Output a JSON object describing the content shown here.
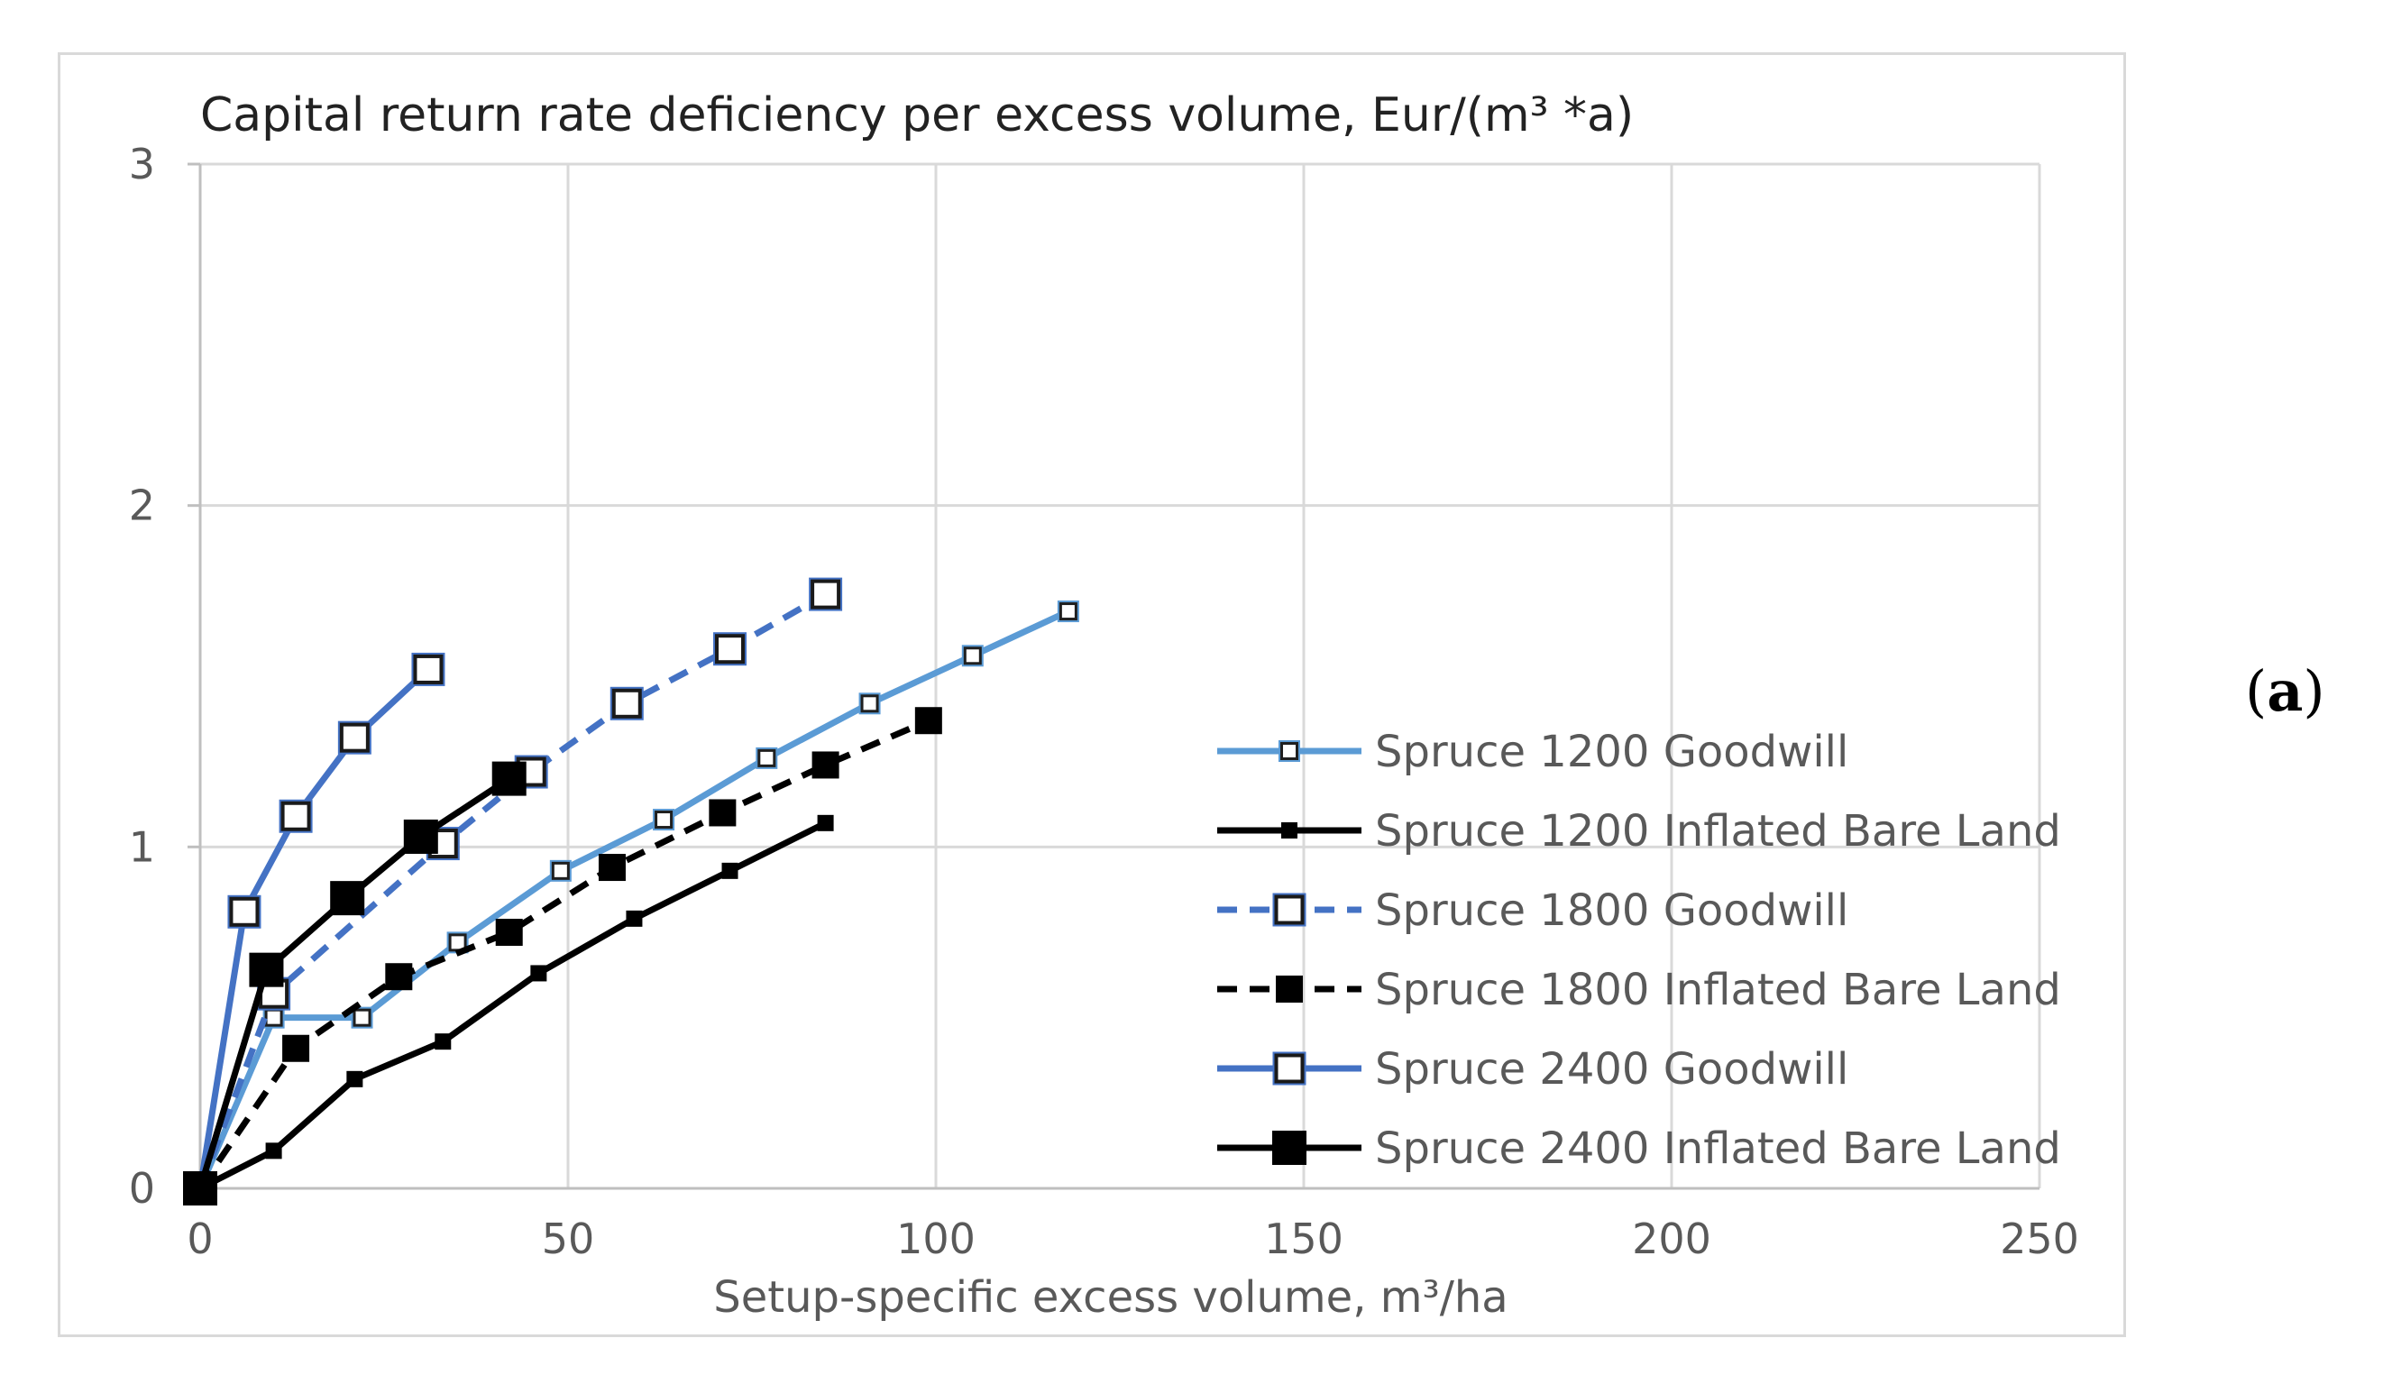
{
  "panel_label": {
    "open": "(",
    "letter": "a",
    "close": ")"
  },
  "chart_data": {
    "type": "line",
    "title": "Capital return rate deficiency per excess volume,  Eur/(m³ *a)",
    "xlabel": "Setup-specific excess volume, m³/ha",
    "ylabel": "",
    "xlim": [
      0,
      250
    ],
    "ylim": [
      0,
      3
    ],
    "x_ticks": [
      0,
      50,
      100,
      150,
      200,
      250
    ],
    "y_ticks": [
      0,
      1,
      2,
      3
    ],
    "grid": true,
    "legend_position": "right",
    "series": [
      {
        "name": "Spruce 1200 Goodwill",
        "color": "#5b9bd5",
        "line_style": "solid",
        "marker": "hollow-square",
        "marker_size": "small",
        "x": [
          0,
          10,
          22,
          35,
          49,
          63,
          77,
          91,
          105,
          118
        ],
        "y": [
          0,
          0.5,
          0.5,
          0.72,
          0.93,
          1.08,
          1.26,
          1.42,
          1.56,
          1.69
        ]
      },
      {
        "name": "Spruce 1200 Inflated Bare Land",
        "color": "#000000",
        "line_style": "solid",
        "marker": "filled-square",
        "marker_size": "small",
        "x": [
          0,
          10,
          21,
          33,
          46,
          59,
          72,
          85
        ],
        "y": [
          0,
          0.11,
          0.32,
          0.43,
          0.63,
          0.79,
          0.93,
          1.07
        ]
      },
      {
        "name": "Spruce 1800 Goodwill",
        "color": "#4472c4",
        "line_style": "dashed",
        "marker": "hollow-square",
        "marker_size": "large",
        "x": [
          0,
          10,
          33,
          45,
          58,
          72,
          85
        ],
        "y": [
          0,
          0.57,
          1.01,
          1.22,
          1.42,
          1.58,
          1.74
        ]
      },
      {
        "name": "Spruce 1800 Inflated Bare Land",
        "color": "#000000",
        "line_style": "dashed",
        "marker": "filled-square",
        "marker_size": "large",
        "x": [
          0,
          13,
          27,
          42,
          56,
          71,
          85,
          99
        ],
        "y": [
          0,
          0.41,
          0.62,
          0.75,
          0.94,
          1.1,
          1.24,
          1.37
        ]
      },
      {
        "name": "Spruce 2400 Goodwill",
        "color": "#4472c4",
        "line_style": "solid",
        "marker": "hollow-square",
        "marker_size": "large",
        "x": [
          0,
          6,
          13,
          21,
          31
        ],
        "y": [
          0,
          0.81,
          1.09,
          1.32,
          1.52
        ]
      },
      {
        "name": "Spruce 2400 Inflated Bare Land",
        "color": "#000000",
        "line_style": "solid",
        "marker": "filled-square",
        "marker_size": "xlarge",
        "x": [
          0,
          9,
          20,
          30,
          42
        ],
        "y": [
          0,
          0.64,
          0.85,
          1.03,
          1.2
        ]
      }
    ]
  }
}
